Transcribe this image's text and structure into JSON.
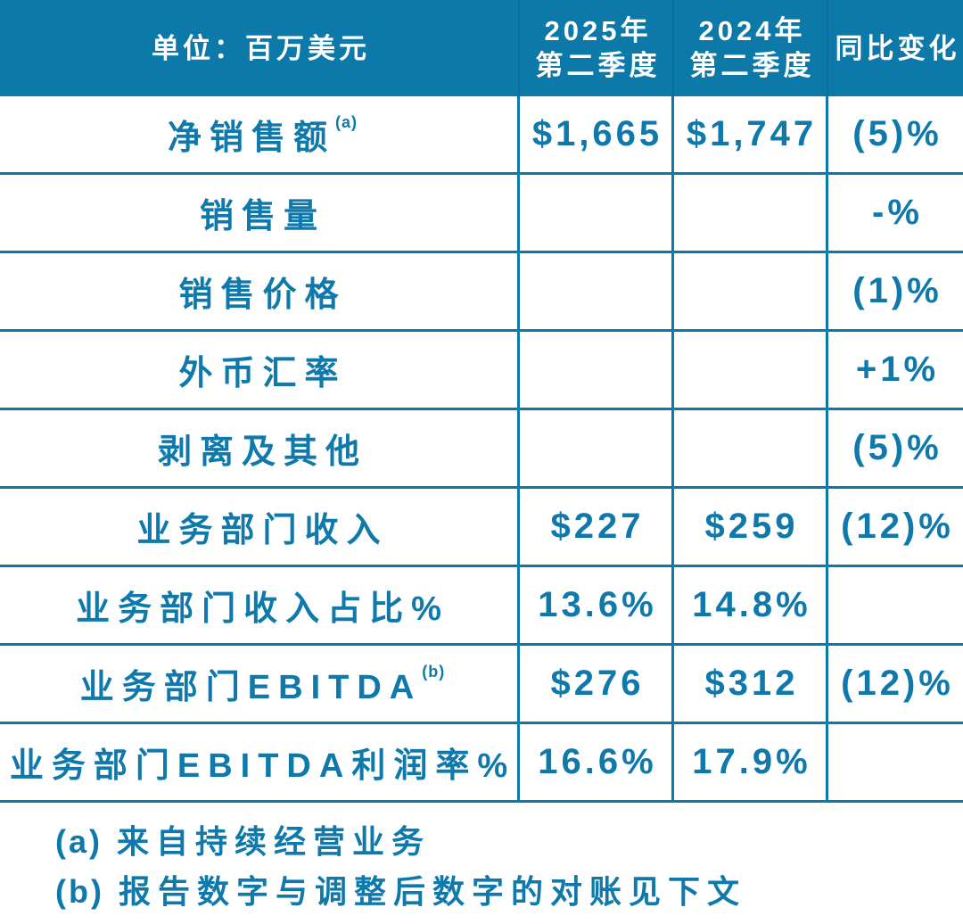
{
  "table": {
    "header": {
      "unit_label": "单位：百万美元",
      "col_2025": {
        "line1": "2025年",
        "line2": "第二季度"
      },
      "col_2024": {
        "line1": "2024年",
        "line2": "第二季度"
      },
      "yoy_label": "同比变化"
    },
    "rows": [
      {
        "label": "净销售额",
        "sup": "(a)",
        "v2025": "$1,665",
        "v2024": "$1,747",
        "yoy": "(5)%"
      },
      {
        "label": "销售量",
        "sup": "",
        "v2025": "",
        "v2024": "",
        "yoy": "-%"
      },
      {
        "label": "销售价格",
        "sup": "",
        "v2025": "",
        "v2024": "",
        "yoy": "(1)%"
      },
      {
        "label": "外币汇率",
        "sup": "",
        "v2025": "",
        "v2024": "",
        "yoy": "+1%"
      },
      {
        "label": "剥离及其他",
        "sup": "",
        "v2025": "",
        "v2024": "",
        "yoy": "(5)%"
      },
      {
        "label": "业务部门收入",
        "sup": "",
        "v2025": "$227",
        "v2024": "$259",
        "yoy": "(12)%"
      },
      {
        "label": "业务部门收入占比%",
        "sup": "",
        "v2025": "13.6%",
        "v2024": "14.8%",
        "yoy": ""
      },
      {
        "label": "业务部门EBITDA",
        "sup": "(b)",
        "v2025": "$276",
        "v2024": "$312",
        "yoy": "(12)%"
      },
      {
        "label": "业务部门EBITDA利润率%",
        "sup": "",
        "v2025": "16.6%",
        "v2024": "17.9%",
        "yoy": ""
      }
    ]
  },
  "footnotes": [
    {
      "marker": "(a)",
      "text": "来自持续经营业务"
    },
    {
      "marker": "(b)",
      "text": "报告数字与调整后数字的对账见下文"
    }
  ],
  "colors": {
    "header_bg": "#0d79a9",
    "grid_line": "#0d79a9",
    "text_blue": "#0f79ab",
    "header_text": "#ffffff",
    "header_divider": "#0c6d99",
    "page_bg": "#ffffff"
  }
}
